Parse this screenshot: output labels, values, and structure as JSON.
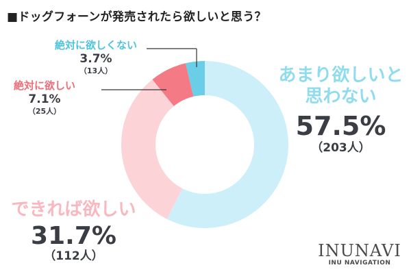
{
  "title": "■ドッグフォーンが発売されたら欲しいと思う？",
  "chart_data": {
    "type": "pie",
    "title": "■ドッグフォーンが発売されたら欲しいと思う？",
    "slices": [
      {
        "label": "あまり欲しいと思わない",
        "value": 57.5,
        "percent_label": "57.5%",
        "count_label": "（203人）",
        "color": "#cdeff9"
      },
      {
        "label": "できれば欲しい",
        "value": 31.7,
        "percent_label": "31.7%",
        "count_label": "（112人）",
        "color": "#fcd3d7"
      },
      {
        "label": "絶対に欲しい",
        "value": 7.1,
        "percent_label": "7.1%",
        "count_label": "（25人）",
        "color": "#f47b85"
      },
      {
        "label": "絶対に欲しくない",
        "value": 3.7,
        "percent_label": "3.7%",
        "count_label": "（13人）",
        "color": "#69cee6"
      }
    ]
  },
  "labels": {
    "dont_want": {
      "line1": "あまり欲しいと",
      "line2": "思わない",
      "color": "#8fdcef"
    },
    "wish": {
      "text": "できれば欲しい",
      "color": "#f9b7bf"
    },
    "definitely_want": {
      "text": "絶対に欲しい",
      "color": "#ee6c78"
    },
    "never": {
      "text": "絶対に欲しくない",
      "color": "#4fc3de"
    }
  },
  "logo": {
    "main": "INUNAVI",
    "sub": "INU NAVIGATION"
  }
}
